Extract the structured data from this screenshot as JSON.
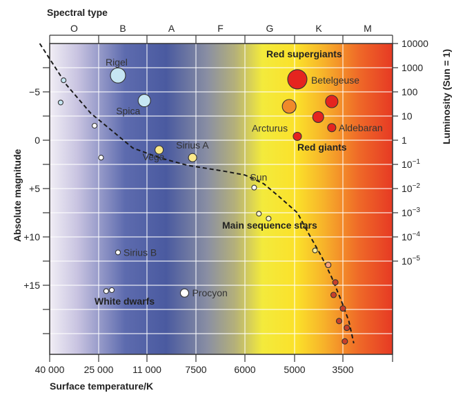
{
  "chart_data": {
    "type": "scatter",
    "title": "",
    "top_axis": {
      "label": "Spectral type",
      "classes": [
        "O",
        "B",
        "A",
        "F",
        "G",
        "K",
        "M"
      ]
    },
    "x_axis": {
      "label": "Surface temperature/K",
      "ticks": [
        "40 000",
        "25 000",
        "11 000",
        "7500",
        "6000",
        "5000",
        "3500"
      ],
      "ticks_temperature_K": [
        40000,
        25000,
        11000,
        7500,
        6000,
        5000,
        3500
      ],
      "direction": "decreasing to the right"
    },
    "y_axis_left": {
      "label": "Absolute magnitude",
      "ticks": [
        "−5",
        "0",
        "+5",
        "+10",
        "+15"
      ],
      "ticks_values": [
        -5,
        0,
        5,
        10,
        15
      ],
      "range": [
        -10,
        22
      ],
      "direction": "inverted (brighter upward)"
    },
    "y_axis_right": {
      "label": "Luminosity (Sun = 1)",
      "ticks": [
        {
          "value": 10000,
          "text": "10000"
        },
        {
          "value": 1000,
          "text": "1000"
        },
        {
          "value": 100,
          "text": "100"
        },
        {
          "value": 10,
          "text": "10"
        },
        {
          "value": 1,
          "text": "1"
        },
        {
          "value": 0.1,
          "base": "10",
          "exp": "−1"
        },
        {
          "value": 0.01,
          "base": "10",
          "exp": "−2"
        },
        {
          "value": 0.001,
          "base": "10",
          "exp": "−3"
        },
        {
          "value": 0.0001,
          "base": "10",
          "exp": "−4"
        },
        {
          "value": 1e-05,
          "base": "10",
          "exp": "−5"
        }
      ],
      "scale": "log"
    },
    "background": "color gradient from violet-white (hot, left) through blue, grey, yellow to red (cool, right)",
    "grid": true,
    "region_labels": [
      "Red supergiants",
      "Red giants",
      "Main sequence stars",
      "White dwarfs"
    ],
    "main_sequence_curve": [
      [
        44000,
        -10
      ],
      [
        34000,
        -5.7
      ],
      [
        27000,
        -2.8
      ],
      [
        20000,
        -1.0
      ],
      [
        14000,
        0.8
      ],
      [
        10000,
        1.8
      ],
      [
        8000,
        2.6
      ],
      [
        6600,
        3.2
      ],
      [
        6000,
        3.6
      ],
      [
        5600,
        4.5
      ],
      [
        5300,
        5.8
      ],
      [
        4900,
        7.5
      ],
      [
        4500,
        9.7
      ],
      [
        4100,
        12.0
      ],
      [
        3800,
        14.2
      ],
      [
        3550,
        16.5
      ],
      [
        3350,
        18.7
      ],
      [
        3230,
        21.0
      ]
    ],
    "stars": [
      {
        "label": "Rigel",
        "T": 18000,
        "M": -6.7,
        "size": 11,
        "color": "#c6e6f3"
      },
      {
        "label": "Spica",
        "T": 11500,
        "M": -4.1,
        "size": 9,
        "color": "#c6e6f3"
      },
      {
        "label": "Vega",
        "T": 10000,
        "M": 1.0,
        "size": 6,
        "color": "#fbe98a"
      },
      {
        "label": "Sirius A",
        "T": 7700,
        "M": 1.8,
        "size": 6,
        "color": "#fbe98a"
      },
      {
        "label": "Sun",
        "T": 5800,
        "M": 4.9,
        "size": 3.5,
        "color": "#ffffff"
      },
      {
        "label": "Betelgeuse",
        "T": 4900,
        "M": -6.3,
        "size": 14,
        "color": "#e5241f"
      },
      {
        "label": "Arcturus",
        "T": 4900,
        "M": -0.4,
        "size": 6,
        "color": "#e5241f"
      },
      {
        "label": "Aldebaran",
        "T": 3800,
        "M": -1.3,
        "size": 6,
        "color": "#e5241f"
      },
      {
        "label": "Sirius B",
        "T": 18000,
        "M": 11.6,
        "size": 3.5,
        "color": "#ffffff"
      },
      {
        "label": "Procyon",
        "T": 8200,
        "M": 15.8,
        "size": 6,
        "color": "#ffffff"
      },
      {
        "label": "",
        "T": 35000,
        "M": -6.2,
        "size": 3.5,
        "color": "#c6e6f3"
      },
      {
        "label": "",
        "T": 36000,
        "M": -3.9,
        "size": 3.5,
        "color": "#c6e6f3"
      },
      {
        "label": "",
        "T": 26000,
        "M": -1.5,
        "size": 3.5,
        "color": "#ffffff"
      },
      {
        "label": "",
        "T": 24000,
        "M": 1.8,
        "size": 3.5,
        "color": "#ffffff"
      },
      {
        "label": "",
        "T": 5100,
        "M": -3.5,
        "size": 10,
        "color": "#f08a2a"
      },
      {
        "label": "",
        "T": 4200,
        "M": -2.4,
        "size": 8,
        "color": "#e5241f"
      },
      {
        "label": "",
        "T": 3800,
        "M": -4.0,
        "size": 9,
        "color": "#e5241f"
      },
      {
        "label": "",
        "T": 5700,
        "M": 7.6,
        "size": 3.5,
        "color": "#fff8d0"
      },
      {
        "label": "",
        "T": 5500,
        "M": 8.1,
        "size": 3.5,
        "color": "#fff8d0"
      },
      {
        "label": "",
        "T": 4300,
        "M": 11.4,
        "size": 3.5,
        "color": "#fff0a0"
      },
      {
        "label": "",
        "T": 3900,
        "M": 12.9,
        "size": 4,
        "color": "#f6a27a"
      },
      {
        "label": "",
        "T": 3700,
        "M": 14.7,
        "size": 4,
        "color": "#c8402a"
      },
      {
        "label": "",
        "T": 3750,
        "M": 16.0,
        "size": 4,
        "color": "#c8402a"
      },
      {
        "label": "",
        "T": 3500,
        "M": 17.4,
        "size": 4,
        "color": "#c8402a"
      },
      {
        "label": "",
        "T": 3600,
        "M": 18.7,
        "size": 4,
        "color": "#c8402a"
      },
      {
        "label": "",
        "T": 3400,
        "M": 19.4,
        "size": 4,
        "color": "#c8402a"
      },
      {
        "label": "",
        "T": 3450,
        "M": 20.8,
        "size": 4,
        "color": "#c8402a"
      },
      {
        "label": "",
        "T": 22000,
        "M": 15.6,
        "size": 3.5,
        "color": "#ffffff"
      },
      {
        "label": "",
        "T": 20000,
        "M": 15.5,
        "size": 3.5,
        "color": "#ffffff"
      }
    ]
  }
}
